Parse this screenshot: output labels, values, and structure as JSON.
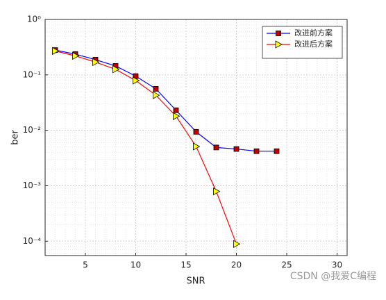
{
  "chart_data": {
    "type": "line",
    "xlabel": "SNR",
    "ylabel": "ber",
    "xlim": [
      1,
      31
    ],
    "xticks": [
      5,
      10,
      15,
      20,
      25,
      30
    ],
    "ylim": [
      5.5e-05,
      1
    ],
    "log_y": true,
    "grid": true,
    "minor_grid": true,
    "yticks": [
      {
        "value": 0.0001,
        "label": "10⁻⁴"
      },
      {
        "value": 0.001,
        "label": "10⁻³"
      },
      {
        "value": 0.01,
        "label": "10⁻²"
      },
      {
        "value": 0.1,
        "label": "10⁻¹"
      },
      {
        "value": 1,
        "label": "10⁰"
      }
    ],
    "legend": "northeast",
    "series": [
      {
        "name": "改进前方案",
        "color": "#0000ff",
        "marker": "square",
        "marker_color": "#c00000",
        "x": [
          2,
          4,
          6,
          8,
          10,
          12,
          14,
          16,
          18,
          20,
          22,
          24
        ],
        "values": [
          0.28,
          0.237,
          0.188,
          0.145,
          0.095,
          0.056,
          0.023,
          0.0094,
          0.0049,
          0.0046,
          0.0042,
          0.0042
        ]
      },
      {
        "name": "改进后方案",
        "color": "#ff0000",
        "marker": "triangle-right",
        "marker_color": "#ffff00",
        "x": [
          2,
          4,
          6,
          8,
          10,
          12,
          14,
          16,
          18,
          20
        ],
        "values": [
          0.27,
          0.22,
          0.17,
          0.126,
          0.079,
          0.043,
          0.018,
          0.0051,
          0.00079,
          8.9e-05
        ]
      }
    ]
  },
  "watermark": "CSDN @我爱C编程"
}
